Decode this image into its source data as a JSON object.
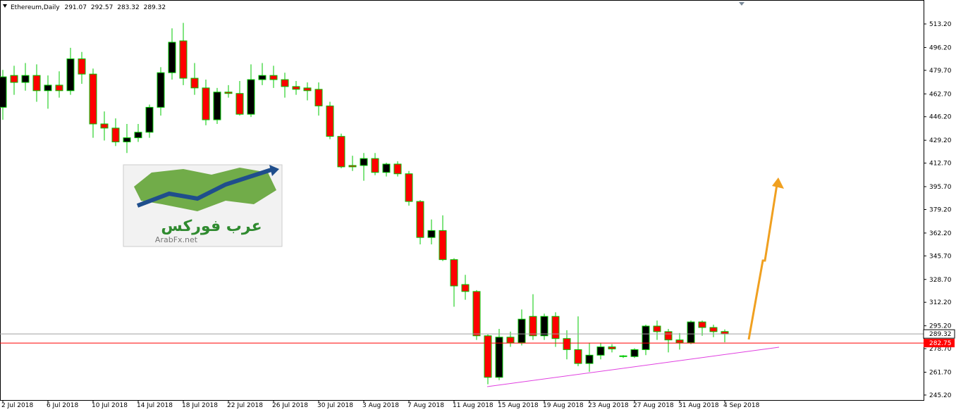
{
  "chart_data": {
    "type": "candlestick",
    "title": "Ethereum,Daily",
    "x": [
      "2 Jul 2018",
      null,
      null,
      null,
      "6 Jul 2018",
      null,
      null,
      null,
      "10 Jul 2018",
      null,
      null,
      null,
      "14 Jul 2018",
      null,
      null,
      null,
      "18 Jul 2018",
      null,
      null,
      null,
      "22 Jul 2018",
      null,
      null,
      null,
      "26 Jul 2018",
      null,
      null,
      null,
      "30 Jul 2018",
      null,
      null,
      null,
      "3 Aug 2018",
      null,
      null,
      null,
      "7 Aug 2018",
      null,
      null,
      null,
      "11 Aug 2018",
      null,
      null,
      null,
      "15 Aug 2018",
      null,
      null,
      null,
      "19 Aug 2018",
      null,
      null,
      null,
      "23 Aug 2018",
      null,
      null,
      null,
      "27 Aug 2018",
      null,
      null,
      null,
      "31 Aug 2018",
      null,
      null,
      null,
      "4 Sep 2018"
    ],
    "open": [
      453,
      476,
      471,
      476,
      465,
      469,
      465,
      488,
      477,
      441,
      438,
      428,
      431,
      435,
      453,
      478,
      501,
      474,
      467,
      444,
      464,
      463,
      448,
      473,
      476,
      473,
      468,
      467,
      466,
      454,
      432,
      411,
      411,
      416,
      406,
      412,
      405,
      385,
      359,
      364,
      343,
      325,
      320,
      288,
      258,
      287,
      283,
      302,
      288,
      302,
      286,
      278,
      268,
      274,
      280,
      273,
      273,
      278,
      295,
      291,
      285,
      283,
      298,
      294,
      291.07
    ],
    "high": [
      480,
      483,
      485,
      484,
      476,
      479,
      496,
      493,
      481,
      450,
      445,
      441,
      441,
      455,
      482,
      510,
      514,
      485,
      473,
      467,
      469,
      472,
      484,
      485,
      483,
      478,
      472,
      471,
      471,
      457,
      434,
      418,
      420,
      420,
      413,
      414,
      407,
      386,
      372,
      375,
      344,
      332,
      321,
      289,
      293,
      291,
      307,
      318,
      304,
      305,
      292,
      302,
      283,
      283,
      282,
      274,
      279,
      296,
      299,
      293,
      290,
      299,
      299,
      296,
      292.57
    ],
    "low": [
      444,
      462,
      465,
      457,
      452,
      460,
      462,
      470,
      431,
      429,
      425,
      420,
      428,
      431,
      447,
      473,
      469,
      462,
      440,
      441,
      460,
      447,
      446,
      469,
      467,
      460,
      462,
      458,
      447,
      430,
      409,
      407,
      400,
      404,
      403,
      403,
      382,
      354,
      354,
      342,
      309,
      314,
      285,
      253,
      256,
      280,
      281,
      285,
      285,
      280,
      271,
      266,
      262,
      271,
      276,
      272,
      272,
      274,
      285,
      276,
      278,
      282,
      288,
      287,
      283.32
    ],
    "close": [
      475,
      471,
      476,
      465,
      469,
      465,
      488,
      477,
      441,
      438,
      428,
      431,
      435,
      453,
      478,
      500,
      474,
      467,
      444,
      464,
      463,
      448,
      473,
      476,
      473,
      468,
      466,
      465,
      454,
      432,
      410,
      410,
      416,
      406,
      412,
      405,
      385,
      359,
      364,
      343,
      324,
      320,
      288,
      258,
      287,
      283,
      300,
      288,
      302,
      286,
      278,
      268,
      274,
      280,
      278.5,
      273.5,
      278,
      295,
      291,
      285,
      283,
      298,
      294,
      291,
      289.32
    ],
    "ylim": [
      241.6,
      530.5
    ],
    "yticks": [
      {
        "value": 245.2,
        "label": "245.20"
      },
      {
        "value": 261.7,
        "label": "261.70"
      },
      {
        "value": 278.7,
        "label": "278.70"
      },
      {
        "value": 295.2,
        "label": "295.20"
      },
      {
        "value": 312.2,
        "label": "312.20"
      },
      {
        "value": 328.7,
        "label": "328.70"
      },
      {
        "value": 345.7,
        "label": "345.70"
      },
      {
        "value": 362.2,
        "label": "362.20"
      },
      {
        "value": 379.2,
        "label": "379.20"
      },
      {
        "value": 395.7,
        "label": "395.70"
      },
      {
        "value": 412.7,
        "label": "412.70"
      },
      {
        "value": 429.2,
        "label": "429.20"
      },
      {
        "value": 446.2,
        "label": "446.20"
      },
      {
        "value": 462.7,
        "label": "462.70"
      },
      {
        "value": 479.7,
        "label": "479.70"
      },
      {
        "value": 496.2,
        "label": "496.20"
      },
      {
        "value": 513.2,
        "label": "513.20"
      }
    ],
    "up_color": "#000000",
    "down_color": "#ff0000",
    "wick_color": "#00c800",
    "hline": {
      "value": 282.75,
      "label": "282.75",
      "color": "#ff0000"
    },
    "last_line_color": "#a0a0a0"
  },
  "logo": {
    "title": "عرب فوركس",
    "url": "ArabFx.net"
  }
}
